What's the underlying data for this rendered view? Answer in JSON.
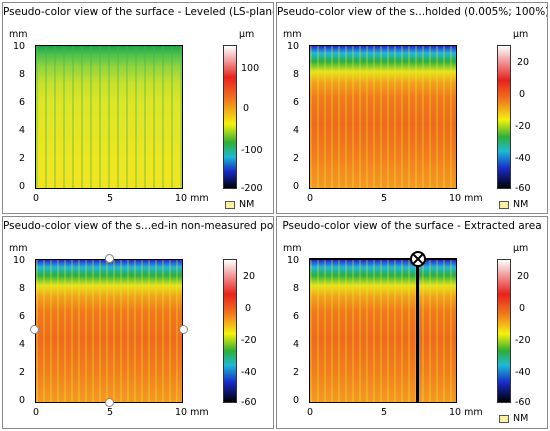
{
  "colors": {
    "scale_top": "#ffffff",
    "scale_red": "#e8221a",
    "scale_orange": "#f07a1e",
    "scale_yellow": "#f2f20f",
    "scale_green": "#2eae3a",
    "scale_cyan": "#20b8d8",
    "scale_blue": "#1a2cc8",
    "scale_bottom": "#000000",
    "nm_swatch": "#fbf3a0"
  },
  "panels": [
    {
      "title": "Pseudo-color view of the surface - Leveled (LS-plane)",
      "y_unit": "mm",
      "x_unit": "mm",
      "bar_unit": "µm",
      "nm_label": "NM",
      "y_ticks": [
        "10",
        "8",
        "6",
        "4",
        "2",
        "0"
      ],
      "x_ticks": [
        "0",
        "5",
        "10 mm"
      ],
      "bar_ticks": [
        "100",
        "0",
        "-100",
        "-200"
      ],
      "marker": "none"
    },
    {
      "title": "Pseudo-color view of the s...holded (0.005%; 100%)",
      "y_unit": "mm",
      "x_unit": "mm",
      "bar_unit": "µm",
      "nm_label": "NM",
      "y_ticks": [
        "10",
        "8",
        "6",
        "4",
        "2",
        "0"
      ],
      "x_ticks": [
        "0",
        "5",
        "10 mm"
      ],
      "bar_ticks": [
        "20",
        "0",
        "-20",
        "-40",
        "-60"
      ],
      "marker": "none"
    },
    {
      "title": "Pseudo-color view of the s...ed-in  non-measured points",
      "y_unit": "mm",
      "x_unit": "mm",
      "bar_unit": "",
      "nm_label": "",
      "y_ticks": [
        "10",
        "8",
        "6",
        "4",
        "2",
        "0"
      ],
      "x_ticks": [
        "0",
        "5",
        "10 mm"
      ],
      "bar_ticks": [
        "20",
        "0",
        "-20",
        "-40",
        "-60"
      ],
      "marker": "edge-points"
    },
    {
      "title": "Pseudo-color view of the surface - Extracted area",
      "y_unit": "mm",
      "x_unit": "mm",
      "bar_unit": "µm",
      "nm_label": "NM",
      "y_ticks": [
        "10",
        "8",
        "6",
        "4",
        "2",
        "0"
      ],
      "x_ticks": [
        "0",
        "5",
        "10 mm"
      ],
      "bar_ticks": [
        "20",
        "0",
        "-20",
        "-40",
        "-60"
      ],
      "marker": "profile-line"
    }
  ]
}
